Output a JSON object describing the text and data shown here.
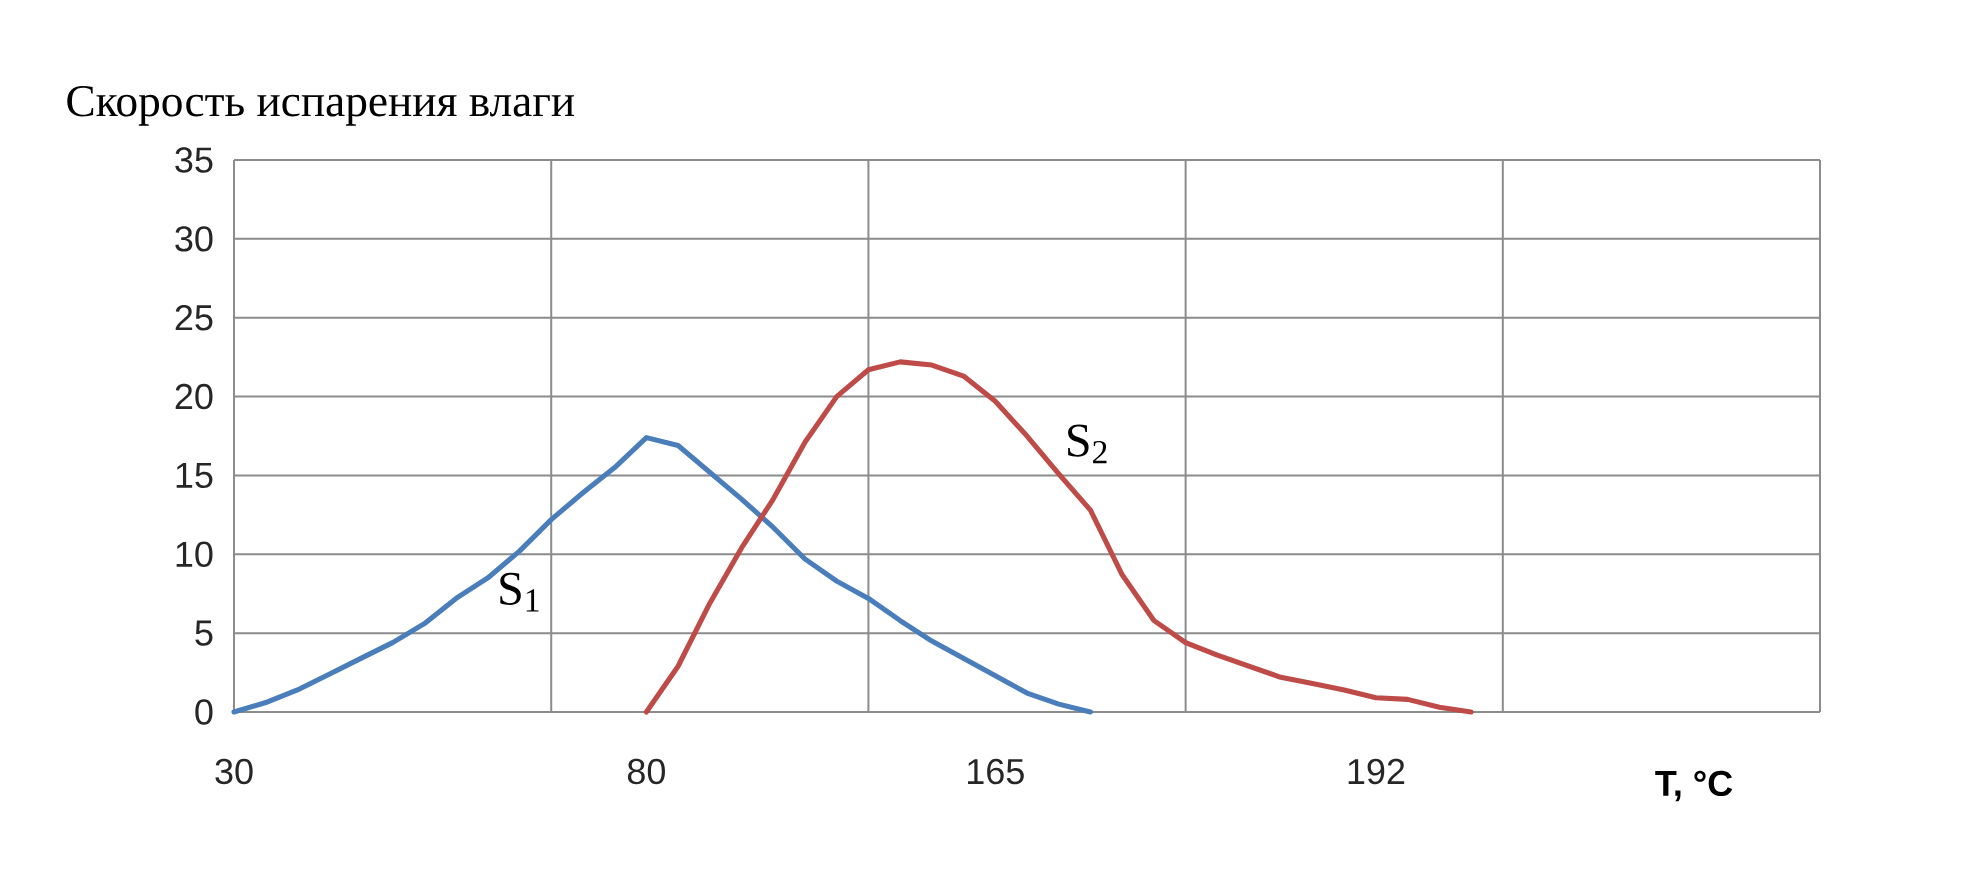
{
  "chart_data": {
    "type": "line",
    "title": "Скорость испарения влаги",
    "xlabel": "T, °C",
    "categories": [
      "30",
      null,
      null,
      null,
      null,
      null,
      null,
      null,
      null,
      null,
      null,
      null,
      null,
      "80",
      null,
      null,
      null,
      null,
      null,
      null,
      null,
      null,
      null,
      null,
      "165",
      null,
      null,
      null,
      null,
      null,
      null,
      null,
      null,
      null,
      null,
      null,
      "192",
      null,
      null,
      null,
      null,
      null,
      null,
      null,
      null,
      null,
      null,
      null,
      null,
      null,
      null
    ],
    "ylim": [
      0,
      35
    ],
    "yticks": [
      0,
      5,
      10,
      15,
      20,
      25,
      30,
      35
    ],
    "grid": true,
    "marker": "none",
    "line_style": "solid",
    "series": [
      {
        "name": "S$_{1}$",
        "color": "#4a7ebb",
        "values": [
          0,
          0.6,
          1.4,
          2.4,
          3.4,
          4.4,
          5.6,
          7.2,
          8.5,
          10.2,
          12.2,
          13.9,
          15.5,
          17.4,
          16.9,
          15.2,
          13.5,
          11.7,
          9.7,
          8.3,
          7.2,
          5.8,
          4.5,
          3.4,
          2.3,
          1.2,
          0.5,
          0,
          null,
          null,
          null,
          null,
          null,
          null,
          null,
          null,
          null,
          null,
          null,
          null,
          null,
          null,
          null,
          null,
          null,
          null,
          null,
          null,
          null,
          null,
          null
        ]
      },
      {
        "name": "S$_{2}$",
        "color": "#be4b48",
        "values": [
          null,
          null,
          null,
          null,
          null,
          null,
          null,
          null,
          null,
          null,
          null,
          null,
          null,
          0,
          2.9,
          6.9,
          10.4,
          13.5,
          17.1,
          20.0,
          21.7,
          22.2,
          22.0,
          21.3,
          19.7,
          17.5,
          15.1,
          12.8,
          8.7,
          5.8,
          4.4,
          3.6,
          2.9,
          2.2,
          1.8,
          1.4,
          0.9,
          0.8,
          0.3,
          0,
          null,
          null,
          null,
          null,
          null,
          null,
          null,
          null,
          null,
          null,
          null
        ]
      }
    ]
  }
}
